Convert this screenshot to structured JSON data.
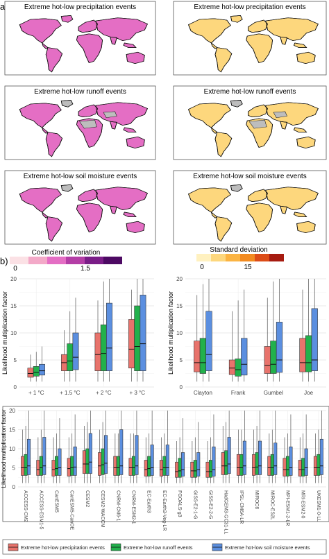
{
  "panel_labels": {
    "a": "a)",
    "b": "b)"
  },
  "maps": {
    "left_titles": [
      "Extreme hot-low precipitation events",
      "Extreme hot-low runoff events",
      "Extreme hot-low soil moisture events"
    ],
    "right_titles": [
      "Extreme hot-low precipitation events",
      "Extreme hot-low runoff events",
      "Extreme hot-low soil moisture events"
    ],
    "cv_legend": {
      "title": "Coefficient of variation",
      "ticks": [
        "0",
        "1.5"
      ],
      "colors": [
        "#fbe1e5",
        "#f3a9c8",
        "#e46ec4",
        "#b43ea6",
        "#7a1d87",
        "#4d0a63"
      ]
    },
    "sd_legend": {
      "title": "Standard deviation",
      "ticks": [
        "0",
        "15"
      ],
      "colors": [
        "#fff1c0",
        "#fdd77d",
        "#fbb443",
        "#f28a1f",
        "#dc4c17",
        "#a61b10"
      ]
    }
  },
  "colors": {
    "precip": "#e8736c",
    "runoff": "#22b14c",
    "soil": "#5b8fe0",
    "land_mask": "#bdbdbd"
  },
  "legend_items": [
    "Extreme hot-low precipitation events",
    "Extreme hot-low runoff events",
    "Extreme hot-low soil moisture events"
  ],
  "chart_data": [
    {
      "type": "box",
      "ylabel": "Likelihood multiplication factor",
      "ylim": [
        0,
        20
      ],
      "yticks": [
        "0",
        "5",
        "10",
        "15",
        "20"
      ],
      "categories": [
        "+ 1 °C",
        "+ 1.5 °C",
        "+ 2 °C",
        "+ 3 °C"
      ],
      "series": [
        {
          "name": "Extreme hot-low precipitation events",
          "boxes": [
            [
              1,
              1.8,
              2.5,
              3.5,
              6
            ],
            [
              1,
              3,
              4.5,
              6,
              10.5
            ],
            [
              1,
              3,
              6,
              10,
              16
            ],
            [
              1,
              3.5,
              7,
              12.5,
              18
            ]
          ]
        },
        {
          "name": "Extreme hot-low runoff events",
          "boxes": [
            [
              1,
              2,
              2.7,
              3.8,
              6.5
            ],
            [
              1,
              3,
              4.8,
              8,
              14
            ],
            [
              1,
              3,
              6.2,
              11.5,
              19.5
            ],
            [
              1,
              3,
              7.5,
              15,
              20
            ]
          ]
        },
        {
          "name": "Extreme hot-low soil moisture events",
          "boxes": [
            [
              1,
              2.2,
              3,
              4.2,
              7.5
            ],
            [
              1,
              3.2,
              5.5,
              10,
              16.5
            ],
            [
              1,
              3,
              7.2,
              15.5,
              20
            ],
            [
              1,
              3,
              8,
              17,
              20
            ]
          ]
        }
      ]
    },
    {
      "type": "box",
      "ylabel": "Likelihood multiplication factor",
      "ylim": [
        0,
        20
      ],
      "yticks": [
        "0",
        "5",
        "10",
        "15",
        "20"
      ],
      "categories": [
        "Clayton",
        "Frank",
        "Gumbel",
        "Joe"
      ],
      "series": [
        {
          "name": "Extreme hot-low precipitation events",
          "boxes": [
            [
              1,
              2.8,
              4.5,
              8.5,
              17
            ],
            [
              1,
              2.3,
              3.5,
              5,
              14
            ],
            [
              1,
              2.5,
              4,
              7.5,
              16.5
            ],
            [
              1,
              2.8,
              4.5,
              9,
              18
            ]
          ]
        },
        {
          "name": "Extreme hot-low runoff events",
          "boxes": [
            [
              1,
              2.5,
              4.5,
              9,
              19
            ],
            [
              1,
              2,
              3.2,
              5.2,
              16
            ],
            [
              1,
              2.5,
              4.2,
              8.5,
              19.5
            ],
            [
              1,
              2.8,
              4.5,
              9.5,
              20
            ]
          ]
        },
        {
          "name": "Extreme hot-low soil moisture events",
          "boxes": [
            [
              1,
              3,
              6,
              14,
              20
            ],
            [
              1,
              2.2,
              4.2,
              9,
              18
            ],
            [
              1,
              2.7,
              5,
              12,
              20
            ],
            [
              1,
              3,
              5,
              14.5,
              20
            ]
          ]
        }
      ]
    },
    {
      "type": "box",
      "ylabel": "Likelihood multiplication factor",
      "ylim": [
        0,
        20
      ],
      "yticks": [
        "0",
        "5",
        "10",
        "15",
        "20"
      ],
      "categories": [
        "ACCESS-CM2",
        "ACCESS-ESM1-5",
        "CanESM5",
        "CanESM5-CanOE",
        "CESM2",
        "CESM2-WACCM",
        "CNRM-CM6-1",
        "CNRM-ESM2-1",
        "EC-Earth3",
        "EC-Earth3-Veg-LR",
        "FGOALS-g3",
        "GISS-E2-1-G",
        "GISS-E2-2-G",
        "HadGEM3-GC31-LL",
        "IPSL-CM6A-LR",
        "MIROC6",
        "MIROC-ES2L",
        "MPI-ESM1-2-LR",
        "MRI-ESM2-0",
        "UKESM1-0-LL"
      ],
      "series": [
        {
          "name": "Extreme hot-low precipitation events",
          "boxes": [
            [
              1,
              3,
              5,
              8,
              15
            ],
            [
              1,
              3,
              4.5,
              7,
              13
            ],
            [
              1,
              2.8,
              4.5,
              7,
              13
            ],
            [
              1,
              2.8,
              4.8,
              7.5,
              13
            ],
            [
              1,
              3.5,
              6,
              9.5,
              16
            ],
            [
              1,
              3,
              5.5,
              9,
              15
            ],
            [
              1,
              3,
              5,
              8,
              14
            ],
            [
              1,
              3,
              5,
              7.5,
              14
            ],
            [
              1,
              2.8,
              4.5,
              7,
              13
            ],
            [
              1,
              2.8,
              4.5,
              7,
              13
            ],
            [
              1,
              2.5,
              4,
              6.5,
              12
            ],
            [
              1,
              2.5,
              4.2,
              6.5,
              12
            ],
            [
              1,
              2.5,
              4,
              6.5,
              12
            ],
            [
              1,
              3.2,
              5.5,
              9,
              16
            ],
            [
              1,
              3,
              5,
              8.5,
              15
            ],
            [
              1,
              3,
              5,
              8.5,
              15
            ],
            [
              1,
              3,
              5,
              8,
              14
            ],
            [
              1,
              2.8,
              4.5,
              7.5,
              13
            ],
            [
              1,
              2.8,
              4.5,
              7,
              13
            ],
            [
              1,
              3,
              5,
              8,
              14
            ]
          ]
        },
        {
          "name": "Extreme hot-low runoff events",
          "boxes": [
            [
              1,
              3,
              5,
              8.5,
              16
            ],
            [
              1,
              3,
              5,
              8,
              15
            ],
            [
              1,
              3,
              4.8,
              8,
              14
            ],
            [
              1,
              3,
              5,
              8,
              14
            ],
            [
              1,
              3.5,
              6,
              10,
              17
            ],
            [
              1,
              3.2,
              5.8,
              10,
              17
            ],
            [
              1,
              3,
              5,
              8,
              14
            ],
            [
              1,
              3,
              5,
              8,
              14
            ],
            [
              1,
              2.8,
              4.8,
              8,
              14
            ],
            [
              1,
              3,
              5,
              8,
              14
            ],
            [
              1,
              2.5,
              4.2,
              7.5,
              13
            ],
            [
              1,
              2.5,
              4.2,
              7,
              13
            ],
            [
              1,
              2.5,
              4,
              7,
              13
            ],
            [
              1,
              3.2,
              5.5,
              9.5,
              17
            ],
            [
              1,
              3,
              5,
              8.5,
              15
            ],
            [
              1,
              3.2,
              5.2,
              9,
              16
            ],
            [
              1,
              3,
              5,
              8.5,
              15
            ],
            [
              1,
              2.8,
              4.5,
              8,
              14
            ],
            [
              1,
              2.8,
              4.5,
              7.5,
              14
            ],
            [
              1,
              3,
              5,
              8.5,
              15
            ]
          ]
        },
        {
          "name": "Extreme hot-low soil moisture events",
          "boxes": [
            [
              1,
              3.2,
              5.5,
              12.5,
              20
            ],
            [
              1,
              3.2,
              5.5,
              13,
              20
            ],
            [
              1,
              3,
              5,
              10,
              18
            ],
            [
              1,
              3,
              5.2,
              10.5,
              19
            ],
            [
              1,
              3.5,
              6.5,
              14,
              20
            ],
            [
              1,
              3.5,
              6.2,
              13.5,
              20
            ],
            [
              1,
              3.2,
              5.5,
              15,
              20
            ],
            [
              1,
              3.2,
              5.5,
              13.5,
              20
            ],
            [
              1,
              3,
              5,
              11,
              20
            ],
            [
              1,
              3,
              5,
              11,
              20
            ],
            [
              1,
              2.8,
              4.5,
              9,
              18
            ],
            [
              1,
              2.8,
              4.5,
              9,
              17
            ],
            [
              1,
              2.8,
              4.5,
              10.5,
              19
            ],
            [
              1,
              3.5,
              6,
              13,
              20
            ],
            [
              1,
              3.2,
              5.5,
              12,
              20
            ],
            [
              1,
              3.2,
              5.5,
              12,
              20
            ],
            [
              1,
              3.2,
              5.5,
              11.5,
              20
            ],
            [
              1,
              3,
              5,
              10.5,
              19
            ],
            [
              1,
              3,
              5,
              10,
              19
            ],
            [
              1,
              3.2,
              5.5,
              12.5,
              20
            ]
          ]
        }
      ]
    }
  ]
}
